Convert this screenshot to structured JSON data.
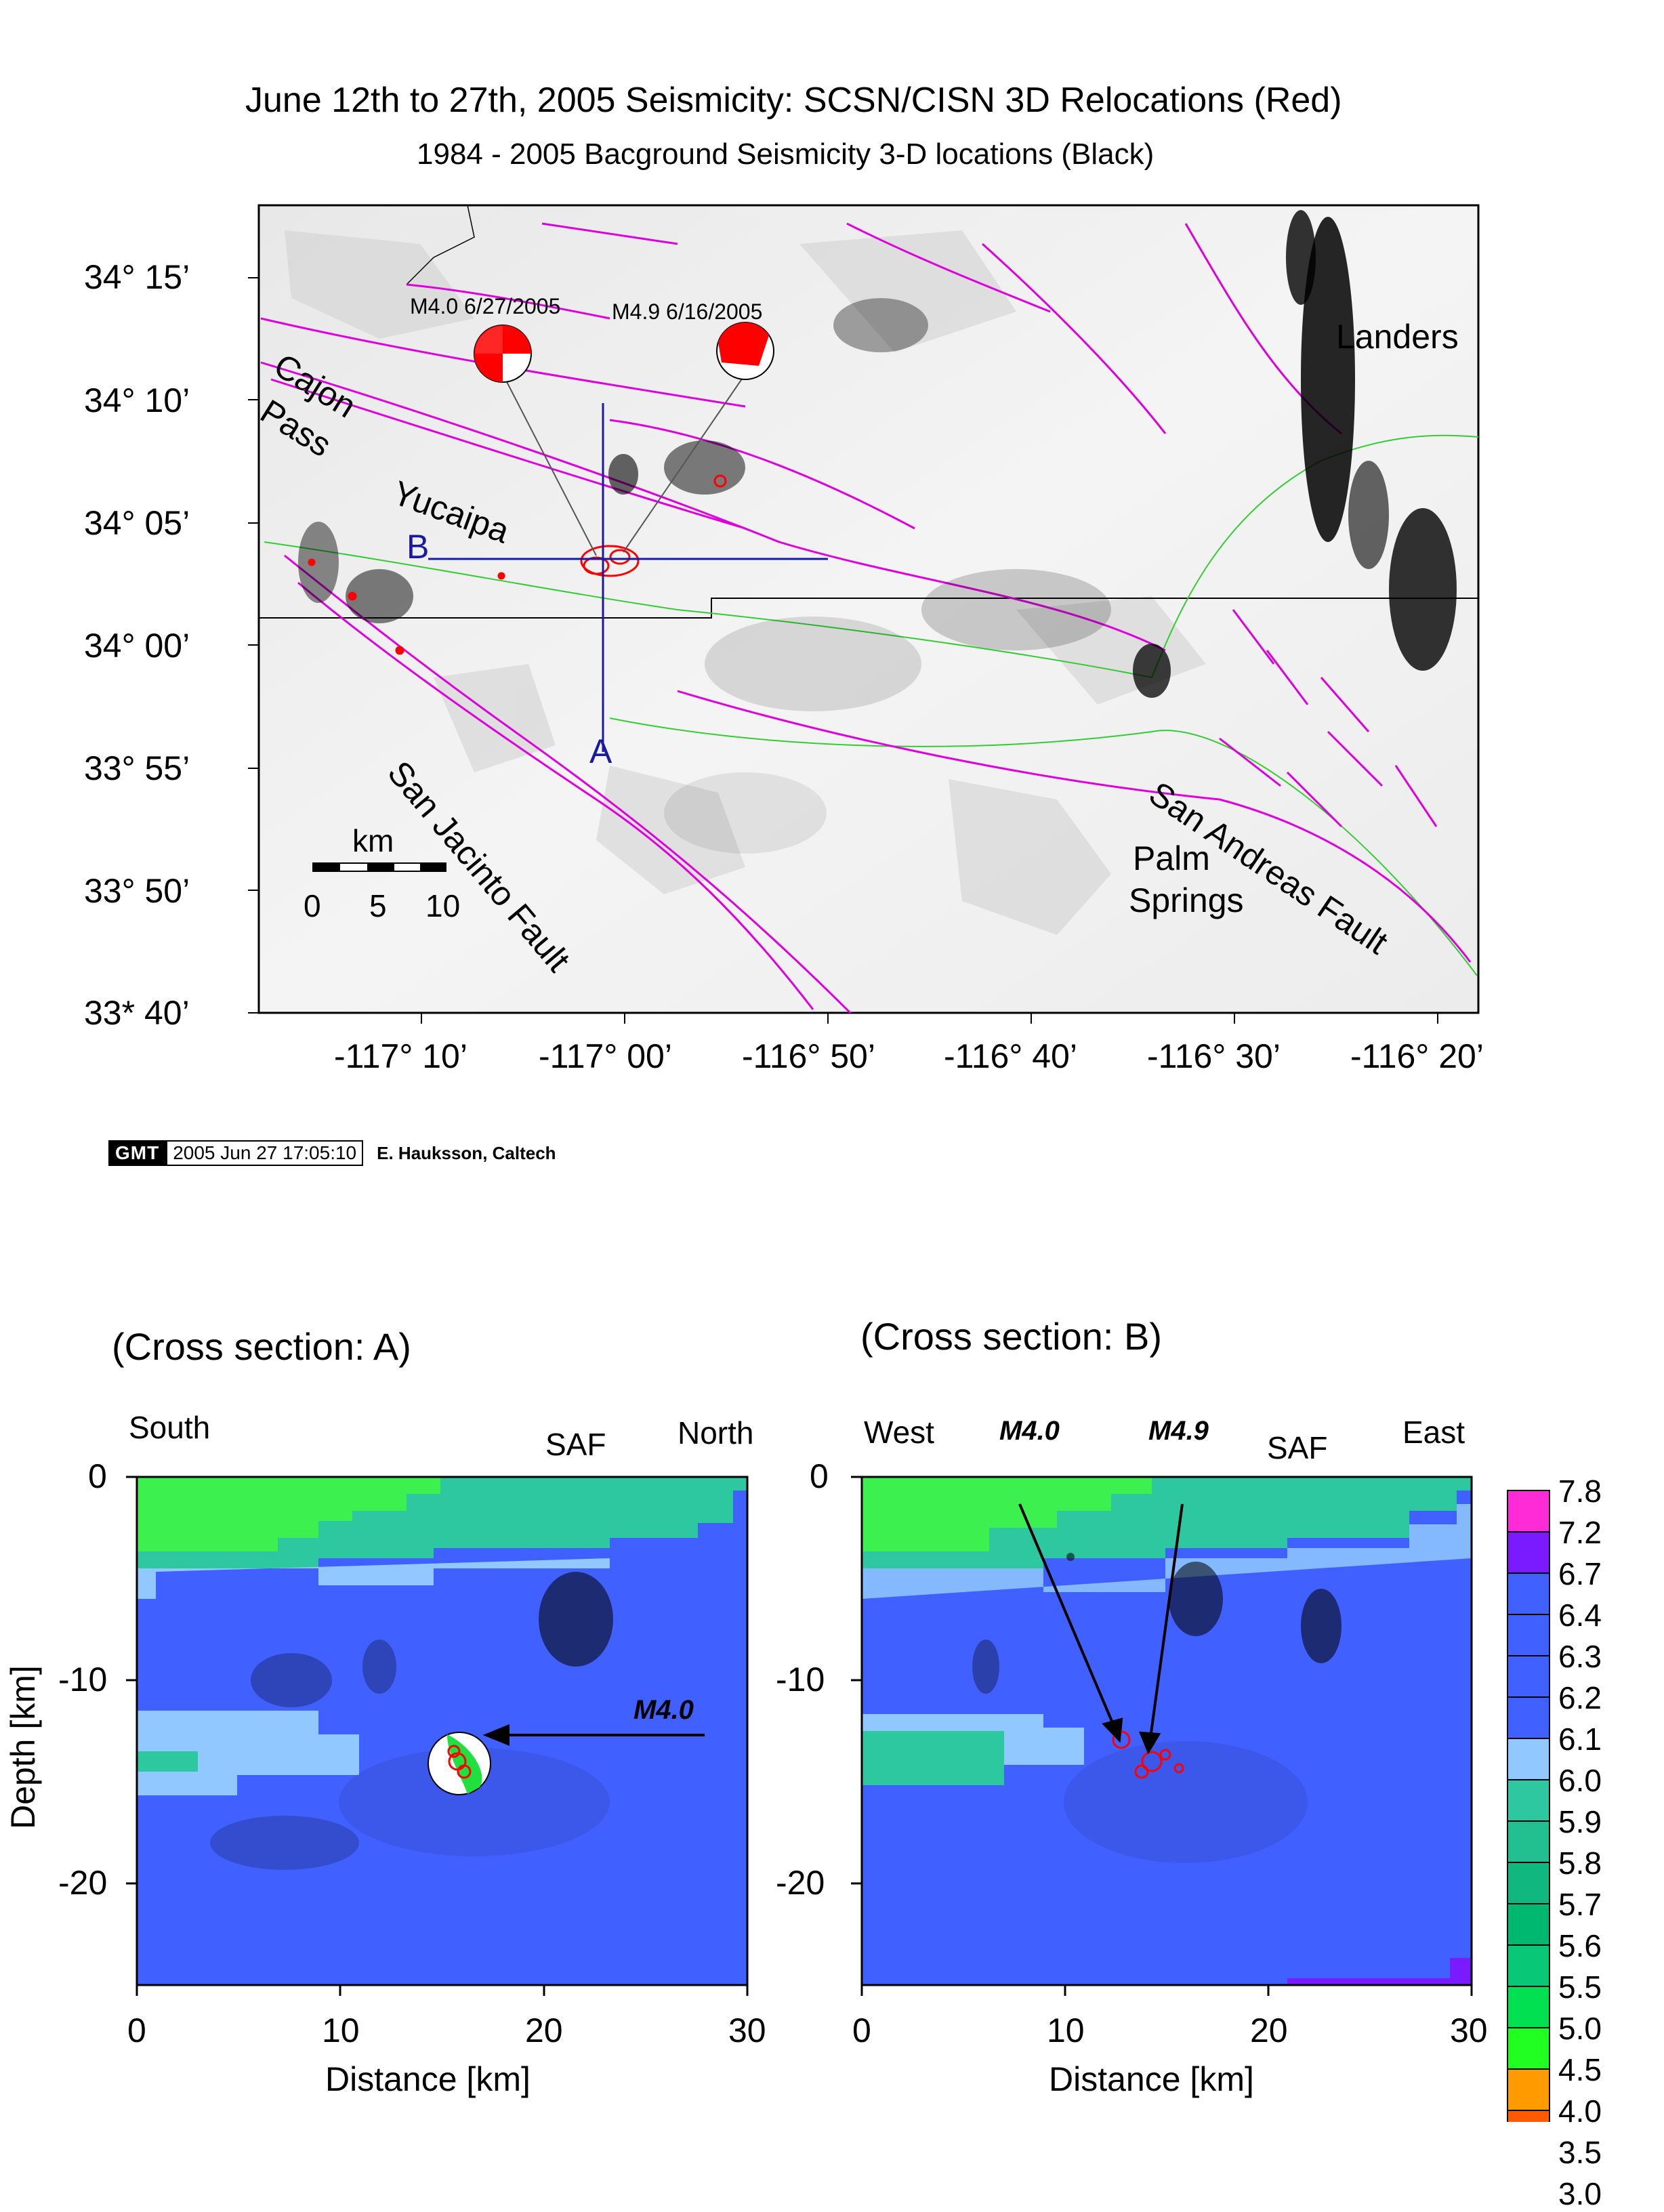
{
  "map": {
    "title": "June 12th to 27th, 2005 Seismicity: SCSN/CISN 3D Relocations (Red)",
    "subtitle": "1984 - 2005 Bacground Seismicity  3-D locations (Black)",
    "lat_ticks": [
      "34° 15’",
      "34° 10’",
      "34° 05’",
      "34° 00’",
      "33° 55’",
      "33° 50’",
      "33* 40’"
    ],
    "lon_ticks": [
      "-117° 10’",
      "-117° 00’",
      "-116° 50’",
      "-116° 40’",
      "-116° 30’",
      "-116° 20’"
    ],
    "labels": {
      "cajon": "Cajon",
      "pass": "Pass",
      "yucaipa": "Yucaipa",
      "landers": "Landers",
      "palm": "Palm",
      "springs": "Springs",
      "saf": "San Andreas Fault",
      "sjf": "San Jacinto Fault",
      "b": "B",
      "a": "A"
    },
    "events": [
      {
        "label": "M4.0 6/27/2005"
      },
      {
        "label": "M4.9 6/16/2005"
      }
    ],
    "scale_bar": {
      "unit": "km",
      "ticks": [
        "0",
        "5",
        "10"
      ]
    },
    "colors": {
      "faults": "#dd00dd",
      "relocations": "#ff0000",
      "profile": "#1a1aa0",
      "background_seismicity": "#000000",
      "county_lines": "#33cc33"
    }
  },
  "stamp": {
    "logo": "GMT",
    "timestamp": "2005 Jun 27 17:05:10",
    "author": "E. Hauksson, Caltech"
  },
  "section_a": {
    "title": "(Cross section: A)",
    "left_label": "South",
    "mid_label": "SAF",
    "right_label": "North",
    "annotation": "M4.0",
    "ylabel": "Depth [km]",
    "xlabel": "Distance [km]",
    "y_ticks": [
      "0",
      "-10",
      "-20"
    ],
    "x_ticks": [
      "0",
      "10",
      "20",
      "30"
    ]
  },
  "section_b": {
    "title": "(Cross section: B)",
    "left_label": "West",
    "mid_label": "SAF",
    "right_label": "East",
    "annotation_1": "M4.0",
    "annotation_2": "M4.9",
    "xlabel": "Distance [km]",
    "y_ticks": [
      "0",
      "-10",
      "-20"
    ],
    "x_ticks": [
      "0",
      "10",
      "20",
      "30"
    ]
  },
  "colorbar": {
    "values": [
      "7.8",
      "7.2",
      "6.7",
      "6.4",
      "6.3",
      "6.2",
      "6.1",
      "6.0",
      "5.9",
      "5.8",
      "5.7",
      "5.6",
      "5.5",
      "5.0",
      "4.5",
      "4.0",
      "3.5",
      "3.0"
    ],
    "colors": [
      "#ff2bd6",
      "#7a1aff",
      "#4060ff",
      "#4060ff",
      "#4060ff",
      "#4060ff",
      "#90c8ff",
      "#2ec8a0",
      "#22c090",
      "#10b880",
      "#00b870",
      "#08c878",
      "#00e050",
      "#20ff20",
      "#ff9a00",
      "#ff5a00",
      "#ff1a00",
      "#ffffff"
    ]
  }
}
